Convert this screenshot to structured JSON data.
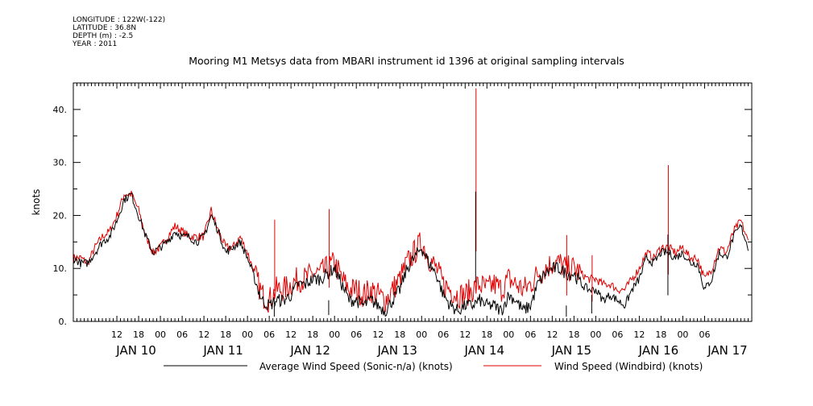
{
  "header": {
    "longitude": "LONGITUDE : 122W(-122)",
    "latitude": "LATITUDE : 36.8N",
    "depth": "DEPTH (m) : -2.5",
    "year": "YEAR : 2011"
  },
  "chart_data": {
    "type": "line",
    "title": "Mooring M1 Metsys data from MBARI instrument id 1396 at original sampling intervals",
    "ylabel": "knots",
    "xlabel": "",
    "ylim": [
      0,
      45
    ],
    "yticks": [
      0.0,
      10.0,
      20.0,
      30.0,
      40.0
    ],
    "ytick_labels": [
      "0.",
      "10.",
      "20.",
      "30.",
      "40."
    ],
    "x_range_hours": [
      -10,
      177
    ],
    "x_hour_ticks": [
      {
        "h": 2,
        "label": "12"
      },
      {
        "h": 8,
        "label": "18"
      },
      {
        "h": 14,
        "label": "00"
      },
      {
        "h": 20,
        "label": "06"
      },
      {
        "h": 26,
        "label": "12"
      },
      {
        "h": 32,
        "label": "18"
      },
      {
        "h": 38,
        "label": "00"
      },
      {
        "h": 44,
        "label": "06"
      },
      {
        "h": 50,
        "label": "12"
      },
      {
        "h": 56,
        "label": "18"
      },
      {
        "h": 62,
        "label": "00"
      },
      {
        "h": 68,
        "label": "06"
      },
      {
        "h": 74,
        "label": "12"
      },
      {
        "h": 80,
        "label": "18"
      },
      {
        "h": 86,
        "label": "00"
      },
      {
        "h": 92,
        "label": "06"
      },
      {
        "h": 98,
        "label": "12"
      },
      {
        "h": 104,
        "label": "18"
      },
      {
        "h": 110,
        "label": "00"
      },
      {
        "h": 116,
        "label": "06"
      },
      {
        "h": 122,
        "label": "12"
      },
      {
        "h": 128,
        "label": "18"
      },
      {
        "h": 134,
        "label": "00"
      },
      {
        "h": 140,
        "label": "06"
      },
      {
        "h": 146,
        "label": "12"
      },
      {
        "h": 152,
        "label": "18"
      },
      {
        "h": 158,
        "label": "00"
      },
      {
        "h": 164,
        "label": "06"
      }
    ],
    "x_day_labels": [
      {
        "h": 2,
        "label": "JAN 10"
      },
      {
        "h": 26,
        "label": "JAN 11"
      },
      {
        "h": 50,
        "label": "JAN 12"
      },
      {
        "h": 74,
        "label": "JAN 13"
      },
      {
        "h": 98,
        "label": "JAN 14"
      },
      {
        "h": 122,
        "label": "JAN 15"
      },
      {
        "h": 146,
        "label": "JAN 16"
      },
      {
        "h": 165,
        "label": "JAN 17"
      }
    ],
    "series": [
      {
        "name": "Average Wind Speed (Sonic-n/a) (knots)",
        "color": "#000000",
        "x": [
          -10,
          -8,
          -6,
          -4,
          -2,
          0,
          2,
          4,
          6,
          8,
          10,
          12,
          14,
          16,
          18,
          20,
          22,
          24,
          26,
          28,
          30,
          32,
          34,
          36,
          38,
          40,
          42,
          44,
          46,
          48,
          50,
          52,
          54,
          56,
          58,
          60,
          62,
          64,
          66,
          68,
          70,
          72,
          74,
          76,
          78,
          80,
          82,
          84,
          86,
          88,
          90,
          92,
          94,
          96,
          98,
          100,
          102,
          104,
          106,
          108,
          110,
          112,
          114,
          116,
          118,
          120,
          122,
          124,
          126,
          128,
          130,
          132,
          134,
          136,
          138,
          140,
          142,
          144,
          146,
          148,
          150,
          152,
          154,
          156,
          158,
          160,
          162,
          164,
          166,
          168,
          170,
          172,
          174,
          176
        ],
        "values": [
          12,
          11,
          11,
          13,
          15,
          16,
          19,
          23,
          24,
          20,
          16,
          13,
          14,
          15,
          17,
          16,
          16,
          15,
          16,
          20,
          17,
          13,
          14,
          15,
          12,
          8,
          4,
          3,
          4,
          4,
          5,
          7,
          7,
          8,
          8,
          9,
          10,
          7,
          4,
          4,
          3,
          4,
          3,
          2,
          4,
          6,
          10,
          12,
          14,
          11,
          9,
          5,
          3,
          2,
          3,
          3,
          4,
          3,
          3,
          2,
          5,
          4,
          2,
          3,
          7,
          9,
          10,
          10,
          9,
          9,
          7,
          6,
          6,
          4,
          5,
          4,
          3,
          6,
          8,
          12,
          11,
          13,
          13,
          12,
          13,
          11,
          11,
          6,
          8,
          13,
          12,
          16,
          18,
          14
        ]
      },
      {
        "name": "Wind Speed (Windbird) (knots)",
        "color": "#e00000",
        "x": [
          -10,
          -8,
          -6,
          -4,
          -2,
          0,
          2,
          4,
          6,
          8,
          10,
          12,
          14,
          16,
          18,
          20,
          22,
          24,
          26,
          28,
          30,
          32,
          34,
          36,
          38,
          40,
          42,
          44,
          46,
          48,
          50,
          52,
          54,
          56,
          58,
          60,
          62,
          64,
          66,
          68,
          70,
          72,
          74,
          76,
          78,
          80,
          82,
          84,
          86,
          88,
          90,
          92,
          94,
          96,
          98,
          100,
          102,
          104,
          106,
          108,
          110,
          112,
          114,
          116,
          118,
          120,
          122,
          124,
          126,
          128,
          130,
          132,
          134,
          136,
          138,
          140,
          142,
          144,
          146,
          148,
          150,
          152,
          154,
          156,
          158,
          160,
          162,
          164,
          166,
          168,
          170,
          172,
          174,
          176
        ],
        "values": [
          12,
          12,
          11,
          14,
          16,
          17,
          20,
          24,
          24,
          21,
          16,
          13,
          14,
          16,
          18,
          17,
          16,
          16,
          16,
          21,
          17,
          14,
          14,
          16,
          13,
          9,
          5,
          4,
          6,
          6,
          7,
          8,
          8,
          9,
          9,
          10,
          11,
          8,
          6,
          6,
          5,
          6,
          5,
          4,
          6,
          8,
          11,
          13,
          15,
          12,
          10,
          7,
          6,
          5,
          5,
          6,
          7,
          6,
          7,
          6,
          8,
          7,
          6,
          7,
          9,
          10,
          11,
          11,
          10,
          10,
          9,
          8,
          8,
          7,
          7,
          6,
          6,
          8,
          10,
          13,
          12,
          14,
          14,
          13,
          14,
          12,
          12,
          8,
          10,
          14,
          13,
          17,
          19,
          15
        ]
      }
    ],
    "spikes": [
      {
        "h": 45.5,
        "red": 19.2,
        "black": 3
      },
      {
        "h": 60.5,
        "red": 21.2,
        "black": 4
      },
      {
        "h": 101,
        "red": 44.0,
        "black": 24.5
      },
      {
        "h": 126,
        "red": 16.3,
        "black": 3
      },
      {
        "h": 154,
        "red": 29.5,
        "black": 16.4
      },
      {
        "h": 133,
        "red": 12.5,
        "black": 5
      }
    ],
    "legend": "bottom",
    "grid": false
  }
}
